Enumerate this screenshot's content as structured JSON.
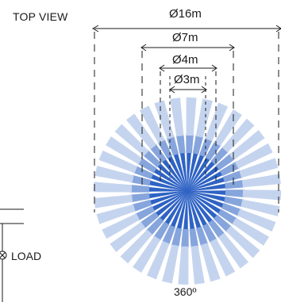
{
  "view_title": "TOP VIEW",
  "dimensions": {
    "outer": "Ø16m",
    "second": "Ø7m",
    "third": "Ø4m",
    "inner": "Ø3m"
  },
  "coverage_angle": "360º",
  "load_label": "LOAD",
  "pattern": {
    "rays": 36,
    "colors": {
      "outer_ray": "#c5d4ee",
      "middle_ray": "#86a5dc",
      "inner_ray": "#2f63c4",
      "line": "#1a1a1a"
    }
  }
}
